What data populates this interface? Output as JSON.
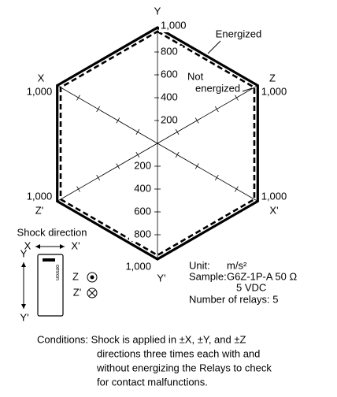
{
  "axes": {
    "y": "Y",
    "y_prime": "Y'",
    "x": "X",
    "x_prime": "X'",
    "z": "Z",
    "z_prime": "Z'"
  },
  "scale_labels": {
    "upper": [
      "200",
      "400",
      "600",
      "800",
      "1,000"
    ],
    "lower": [
      "200",
      "400",
      "600",
      "800",
      "1,000"
    ]
  },
  "corner_labels": {
    "upper_left": "1,000",
    "upper_right": "1,000",
    "lower_left": "1,000",
    "lower_right": "1,000"
  },
  "legend": {
    "energized": "Energized",
    "not_energized_1": "Not",
    "not_energized_2": "energized"
  },
  "shock": {
    "title": "Shock direction",
    "x": "X",
    "x_prime": "X'",
    "y": "Y",
    "y_prime": "Y'",
    "z": "Z",
    "z_prime": "Z'",
    "brand": "omron"
  },
  "info": {
    "unit_label": "Unit:",
    "unit": "m/s²",
    "sample_label": "Sample:",
    "sample": "G6Z-1P-A  50 Ω",
    "voltage": "5 VDC",
    "relays": "Number of relays: 5"
  },
  "conditions": [
    "Conditions: Shock is applied in ±X, ±Y, and ±Z",
    "directions three times each with and",
    "without energizing the Relays to check",
    "for contact malfunctions."
  ]
}
